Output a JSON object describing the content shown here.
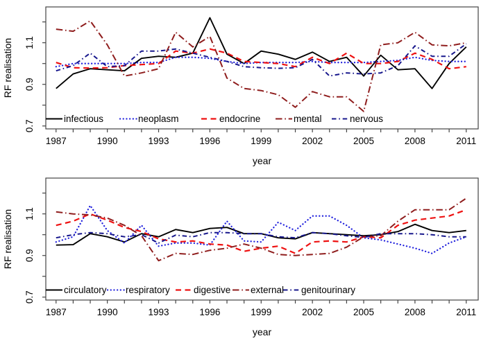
{
  "figure_title": "",
  "axes": {
    "y_label": "RF realisation",
    "x_label": "year",
    "y_tick_labels": [
      "0.7",
      "0.9",
      "1.1"
    ],
    "x_tick_labels": [
      "1987",
      "1990",
      "1993",
      "1996",
      "1999",
      "2002",
      "2005",
      "2008",
      "2011"
    ]
  },
  "colors": {
    "black": "#000000",
    "blue": "#2222dd",
    "red": "#ee1111",
    "dark_red": "#8f1d1d",
    "navy": "#17178c",
    "frame": "#444444"
  },
  "chart_data": [
    {
      "type": "line",
      "title": "",
      "xlabel": "year",
      "ylabel": "RF realisation",
      "grid": false,
      "legend_position": "inside-bottom-left",
      "xlim": [
        1986.4,
        2011.7
      ],
      "ylim": [
        0.686,
        1.272
      ],
      "yticks": [
        0.7,
        0.8,
        0.9,
        1.0,
        1.1,
        1.2
      ],
      "ytick_labeled": [
        0.7,
        0.9,
        1.1
      ],
      "xtick_labeled": [
        1987,
        1990,
        1993,
        1996,
        1999,
        2002,
        2005,
        2008,
        2011
      ],
      "x": [
        1987,
        1988,
        1989,
        1990,
        1991,
        1992,
        1993,
        1994,
        1995,
        1996,
        1997,
        1998,
        1999,
        2000,
        2001,
        2002,
        2003,
        2004,
        2005,
        2006,
        2007,
        2008,
        2009,
        2010,
        2011
      ],
      "series": [
        {
          "name": "infectious",
          "color": "#000000",
          "style": "solid",
          "values": [
            0.88,
            0.95,
            0.975,
            0.97,
            0.965,
            1.025,
            1.035,
            1.03,
            1.05,
            1.22,
            1.045,
            1.0,
            1.06,
            1.045,
            1.02,
            1.055,
            1.01,
            1.03,
            0.94,
            1.04,
            0.97,
            0.975,
            0.88,
            1.0,
            1.08
          ]
        },
        {
          "name": "neoplasm",
          "color": "#2222dd",
          "style": "dotted",
          "values": [
            0.985,
            1.0,
            1.0,
            1.0,
            1.0,
            1.005,
            1.005,
            1.03,
            1.03,
            1.025,
            1.01,
            1.0,
            1.005,
            1.005,
            1.005,
            1.01,
            1.005,
            1.005,
            1.005,
            1.01,
            1.015,
            1.03,
            1.015,
            1.01,
            1.01
          ]
        },
        {
          "name": "endocrine",
          "color": "#ee1111",
          "style": "dashed",
          "values": [
            1.005,
            0.98,
            0.978,
            0.98,
            0.99,
            0.995,
            1.0,
            1.06,
            1.05,
            1.07,
            1.05,
            1.01,
            1.005,
            1.0,
            0.985,
            1.03,
            1.0,
            1.05,
            1.0,
            1.0,
            1.01,
            1.05,
            1.02,
            0.975,
            0.985
          ]
        },
        {
          "name": "mental",
          "color": "#8f1d1d",
          "style": "dashdot-long",
          "values": [
            1.165,
            1.155,
            1.205,
            1.09,
            0.94,
            0.955,
            0.975,
            1.15,
            1.08,
            1.13,
            0.93,
            0.88,
            0.87,
            0.85,
            0.79,
            0.865,
            0.84,
            0.84,
            0.77,
            1.09,
            1.1,
            1.15,
            1.09,
            1.085,
            1.1
          ]
        },
        {
          "name": "nervous",
          "color": "#17178c",
          "style": "dashdot",
          "values": [
            0.965,
            0.99,
            1.05,
            0.985,
            0.99,
            1.06,
            1.06,
            1.07,
            1.05,
            1.03,
            1.01,
            0.985,
            0.98,
            0.977,
            0.98,
            1.02,
            0.94,
            0.955,
            0.95,
            0.955,
            0.99,
            1.085,
            1.035,
            1.035,
            1.095
          ]
        }
      ]
    },
    {
      "type": "line",
      "title": "",
      "xlabel": "year",
      "ylabel": "RF realisation",
      "grid": false,
      "legend_position": "inside-bottom-left",
      "xlim": [
        1986.4,
        2011.7
      ],
      "ylim": [
        0.686,
        1.272
      ],
      "yticks": [
        0.7,
        0.8,
        0.9,
        1.0,
        1.1,
        1.2
      ],
      "ytick_labeled": [
        0.7,
        0.9,
        1.1
      ],
      "xtick_labeled": [
        1987,
        1990,
        1993,
        1996,
        1999,
        2002,
        2005,
        2008,
        2011
      ],
      "x": [
        1987,
        1988,
        1989,
        1990,
        1991,
        1992,
        1993,
        1994,
        1995,
        1996,
        1997,
        1998,
        1999,
        2000,
        2001,
        2002,
        2003,
        2004,
        2005,
        2006,
        2007,
        2008,
        2009,
        2010,
        2011
      ],
      "series": [
        {
          "name": "circulatory",
          "color": "#000000",
          "style": "solid",
          "values": [
            0.95,
            0.952,
            1.005,
            0.99,
            0.965,
            1.005,
            0.99,
            1.025,
            1.01,
            1.03,
            1.035,
            1.005,
            1.005,
            0.985,
            0.98,
            1.01,
            1.005,
            1.0,
            0.995,
            1.0,
            1.015,
            1.05,
            1.02,
            1.01,
            1.02
          ]
        },
        {
          "name": "respiratory",
          "color": "#2222dd",
          "style": "dotted",
          "values": [
            0.965,
            0.99,
            1.14,
            1.02,
            0.96,
            1.045,
            0.945,
            0.96,
            0.96,
            0.95,
            1.065,
            0.97,
            0.965,
            1.06,
            1.02,
            1.09,
            1.09,
            1.045,
            0.985,
            0.975,
            0.955,
            0.935,
            0.91,
            0.96,
            0.99
          ]
        },
        {
          "name": "digestive",
          "color": "#ee1111",
          "style": "dashed",
          "values": [
            1.045,
            1.065,
            1.1,
            1.07,
            1.035,
            1.015,
            0.98,
            0.965,
            0.97,
            0.955,
            0.95,
            0.92,
            0.935,
            0.945,
            0.91,
            0.965,
            0.97,
            0.965,
            0.99,
            0.985,
            1.045,
            1.07,
            1.08,
            1.09,
            1.12
          ]
        },
        {
          "name": "external",
          "color": "#8f1d1d",
          "style": "dashdot-long",
          "values": [
            1.11,
            1.1,
            1.095,
            1.08,
            1.045,
            0.995,
            0.875,
            0.91,
            0.905,
            0.925,
            0.935,
            0.955,
            0.935,
            0.905,
            0.9,
            0.905,
            0.91,
            0.94,
            0.99,
            0.995,
            1.065,
            1.12,
            1.12,
            1.12,
            1.175
          ]
        },
        {
          "name": "genitourinary",
          "color": "#17178c",
          "style": "dashdot",
          "values": [
            0.985,
            1.0,
            1.01,
            1.005,
            0.99,
            1.0,
            0.96,
            0.998,
            0.99,
            1.01,
            1.01,
            1.005,
            1.005,
            0.99,
            0.985,
            1.01,
            1.005,
            0.995,
            0.987,
            1.005,
            1.005,
            1.005,
            1.0,
            0.99,
            0.99
          ]
        }
      ]
    }
  ]
}
